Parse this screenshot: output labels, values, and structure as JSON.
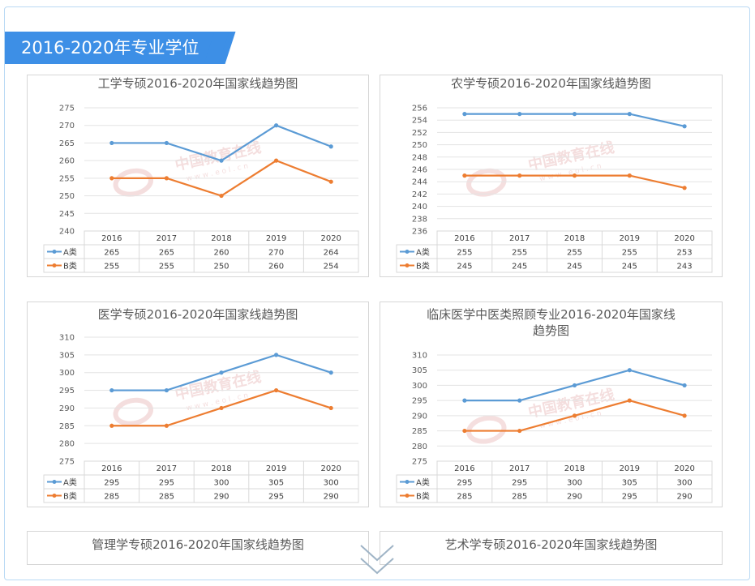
{
  "section_title": "2016-2020年专业学位",
  "colors": {
    "accent": "#3d8fe6",
    "series_a": "#5b9bd5",
    "series_b": "#ed7d31",
    "watermark": "#e2a3a3"
  },
  "watermark": {
    "cn": "中国教育在线",
    "en": "w w w . e o l . c n"
  },
  "icons": {
    "scroll": "chevron-double-down-icon"
  },
  "chart_data": [
    {
      "type": "line",
      "title": "工学专硕2016-2020年国家线趋势图",
      "categories": [
        "2016",
        "2017",
        "2018",
        "2019",
        "2020"
      ],
      "series": [
        {
          "name": "A类",
          "values": [
            265,
            265,
            260,
            270,
            264
          ]
        },
        {
          "name": "B类",
          "values": [
            255,
            255,
            250,
            260,
            254
          ]
        }
      ],
      "ylim": [
        240,
        275
      ],
      "ystep": 5,
      "grid": true,
      "legend": "data-table"
    },
    {
      "type": "line",
      "title": "农学专硕2016-2020年国家线趋势图",
      "categories": [
        "2016",
        "2017",
        "2018",
        "2019",
        "2020"
      ],
      "series": [
        {
          "name": "A类",
          "values": [
            255,
            255,
            255,
            255,
            253
          ]
        },
        {
          "name": "B类",
          "values": [
            245,
            245,
            245,
            245,
            243
          ]
        }
      ],
      "ylim": [
        236,
        256
      ],
      "ystep": 2,
      "grid": true,
      "legend": "data-table"
    },
    {
      "type": "line",
      "title": "医学专硕2016-2020年国家线趋势图",
      "categories": [
        "2016",
        "2017",
        "2018",
        "2019",
        "2020"
      ],
      "series": [
        {
          "name": "A类",
          "values": [
            295,
            295,
            300,
            305,
            300
          ]
        },
        {
          "name": "B类",
          "values": [
            285,
            285,
            290,
            295,
            290
          ]
        }
      ],
      "ylim": [
        275,
        310
      ],
      "ystep": 5,
      "grid": true,
      "legend": "data-table"
    },
    {
      "type": "line",
      "title": "临床医学中医类照顾专业2016-2020年国家线\n趋势图",
      "categories": [
        "2016",
        "2017",
        "2018",
        "2019",
        "2020"
      ],
      "series": [
        {
          "name": "A类",
          "values": [
            295,
            295,
            300,
            305,
            300
          ]
        },
        {
          "name": "B类",
          "values": [
            285,
            285,
            290,
            295,
            290
          ]
        }
      ],
      "ylim": [
        275,
        310
      ],
      "ystep": 5,
      "grid": true,
      "legend": "data-table"
    },
    {
      "type": "line",
      "title": "管理学专硕2016-2020年国家线趋势图",
      "categories": [],
      "series": []
    },
    {
      "type": "line",
      "title": "艺术学专硕2016-2020年国家线趋势图",
      "categories": [],
      "series": []
    }
  ]
}
